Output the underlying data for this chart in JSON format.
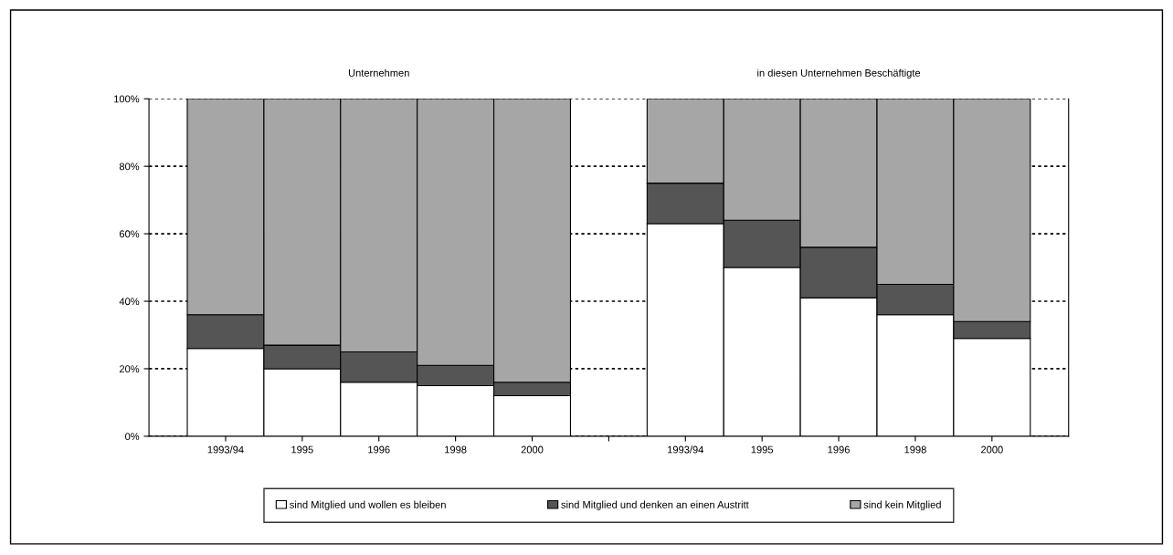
{
  "chart_data": {
    "type": "bar",
    "stacked": true,
    "categories": [
      "1993/94",
      "1995",
      "1996",
      "1998",
      "2000",
      null,
      "1993/94",
      "1995",
      "1996",
      "1998",
      "2000"
    ],
    "series": [
      {
        "name": "sind Mitglied und wollen es bleiben",
        "color": "#ffffff",
        "values": [
          26,
          20,
          16,
          15,
          12,
          null,
          63,
          50,
          41,
          36,
          29
        ]
      },
      {
        "name": "sind Mitglied und denken an einen Austritt",
        "color": "#555555",
        "values": [
          10,
          7,
          9,
          6,
          4,
          null,
          12,
          14,
          15,
          9,
          5
        ]
      },
      {
        "name": "sind kein Mitglied",
        "color": "#a6a6a6",
        "values": [
          64,
          73,
          75,
          79,
          84,
          null,
          25,
          36,
          44,
          55,
          66
        ]
      }
    ],
    "annotations": [
      "Unternehmen",
      "in diesen Unternehmen Beschäftigte"
    ],
    "ylim": [
      0,
      100
    ],
    "yticks": [
      {
        "value": 0,
        "label": "0%"
      },
      {
        "value": 20,
        "label": "20%"
      },
      {
        "value": 40,
        "label": "40%"
      },
      {
        "value": 60,
        "label": "60%"
      },
      {
        "value": 80,
        "label": "80%"
      },
      {
        "value": 100,
        "label": "100%"
      }
    ],
    "grid": "y",
    "legend": "bottom"
  }
}
